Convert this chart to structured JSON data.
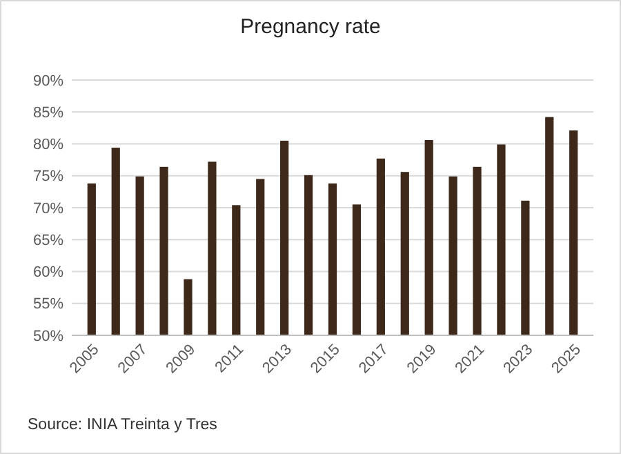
{
  "chart_data": {
    "type": "bar",
    "title": "Pregnancy rate",
    "categories": [
      "2005",
      null,
      "2007",
      null,
      "2009",
      null,
      "2011",
      null,
      "2013",
      null,
      "2015",
      null,
      "2017",
      null,
      "2019",
      null,
      "2021",
      null,
      "2023",
      null,
      "2025"
    ],
    "values": [
      73.8,
      79.4,
      74.9,
      76.4,
      58.8,
      77.2,
      70.4,
      74.5,
      80.5,
      75.1,
      73.8,
      70.5,
      77.7,
      75.6,
      80.6,
      74.9,
      76.4,
      79.9,
      71.1,
      84.2,
      82.1
    ],
    "color": "#3d2819",
    "ylim": [
      50,
      90
    ],
    "yticks": [
      {
        "value": 50,
        "label": "50%"
      },
      {
        "value": 55,
        "label": "55%"
      },
      {
        "value": 60,
        "label": "60%"
      },
      {
        "value": 65,
        "label": "65%"
      },
      {
        "value": 70,
        "label": "70%"
      },
      {
        "value": 75,
        "label": "75%"
      },
      {
        "value": 80,
        "label": "80%"
      },
      {
        "value": 85,
        "label": "85%"
      },
      {
        "value": 90,
        "label": "90%"
      }
    ],
    "grid": "y",
    "annotations": [
      "Source: INIA Treinta y Tres"
    ]
  }
}
